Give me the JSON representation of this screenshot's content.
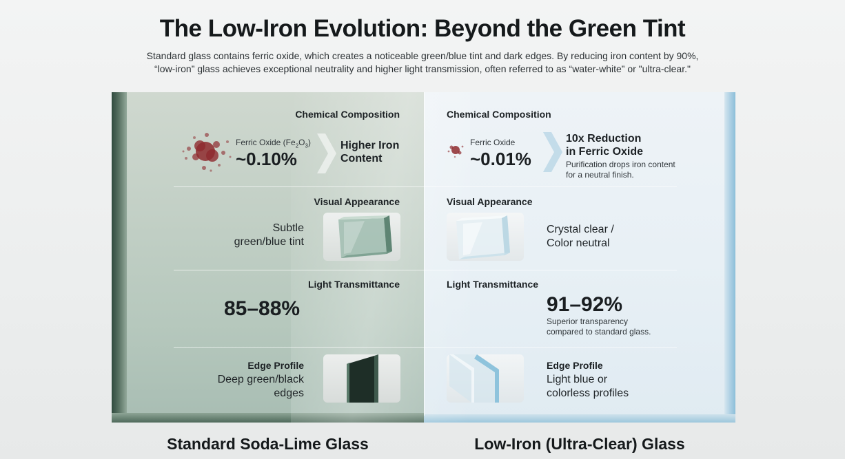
{
  "title": "The Low-Iron Evolution: Beyond the Green Tint",
  "subtitle_line1": "Standard glass contains ferric oxide, which creates a noticeable green/blue tint and dark edges. By reducing iron content by 90%,",
  "subtitle_line2": "“low-iron” glass achieves exceptional neutrality and higher light transmission, often referred to as “water-white” or \"ultra-clear.\"",
  "left": {
    "footer": "Standard Soda-Lime Glass",
    "composition": {
      "heading": "Chemical Composition",
      "oxide_label": "Ferric Oxide (Fe",
      "oxide_sub1": "2",
      "oxide_mid": "O",
      "oxide_sub2": "3",
      "oxide_end": ")",
      "value": "~0.10%",
      "result_line1": "Higher Iron",
      "result_line2": "Content"
    },
    "appearance": {
      "heading": "Visual Appearance",
      "line1": "Subtle",
      "line2": "green/blue tint"
    },
    "transmittance": {
      "heading": "Light Transmittance",
      "value": "85–88%"
    },
    "edge": {
      "heading": "Edge Profile",
      "line1": "Deep green/black",
      "line2": "edges"
    }
  },
  "right": {
    "footer": "Low-Iron (Ultra-Clear) Glass",
    "composition": {
      "heading": "Chemical Composition",
      "oxide_label": "Ferric Oxide",
      "value": "~0.01%",
      "result_line1": "10x Reduction",
      "result_line2": "in Ferric Oxide",
      "note_line1": "Purification drops iron content",
      "note_line2": "for a neutral finish."
    },
    "appearance": {
      "heading": "Visual Appearance",
      "line1": "Crystal clear /",
      "line2": "Color neutral"
    },
    "transmittance": {
      "heading": "Light Transmittance",
      "value": "91–92%",
      "note_line1": "Superior transparency",
      "note_line2": "compared to standard glass."
    },
    "edge": {
      "heading": "Edge Profile",
      "line1": "Light blue or",
      "line2": "colorless profiles"
    }
  },
  "colors": {
    "standard_glass": "#b6c8bd",
    "standard_edge": "#2f4a3e",
    "lowiron_glass": "#e8f0f5",
    "lowiron_edge": "#8cbfd9",
    "iron_particles": "#8e2a2e"
  }
}
